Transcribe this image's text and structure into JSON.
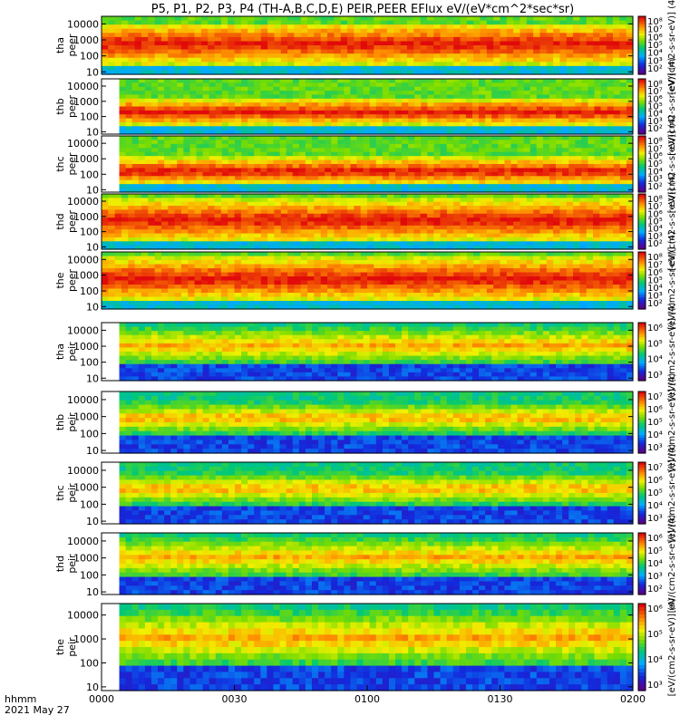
{
  "chart_data": {
    "type": "heatmap",
    "title": "P5, P1, P2, P3, P4 (TH-A,B,C,D,E) PEIR,PEER EFlux eV/(eV*cm^2*sec*sr)",
    "x_ticks": [
      "0000",
      "0030",
      "0100",
      "0130",
      "0200"
    ],
    "x_range_minutes": [
      0,
      120
    ],
    "time_label": "hhmm",
    "date_label": "2021 May 27",
    "y_scale": "log",
    "y_ticks": [
      "10",
      "100",
      "1000",
      "10000"
    ],
    "ylim_eV": [
      7,
      30000
    ],
    "colorbar_label": "[eV/(cm2-s-sr-eV)] (4)",
    "colorbar_scale": "log",
    "panels": [
      {
        "probe": "tha",
        "species": "peer",
        "ylabel": [
          "tha",
          "peer"
        ],
        "data_start_min": 0,
        "band_low_eV": 25,
        "band_high_eV": 12000,
        "cb_ticks": [
          "10^8",
          "10^7",
          "10^6",
          "10^5",
          "10^4",
          "10^3",
          "10^2"
        ]
      },
      {
        "probe": "thb",
        "species": "peer",
        "ylabel": [
          "thb",
          "peer"
        ],
        "data_start_min": 4,
        "band_low_eV": 25,
        "band_high_eV": 1500,
        "cb_ticks": [
          "10^8",
          "10^7",
          "10^6",
          "10^5",
          "10^4",
          "10^3",
          "10^2"
        ]
      },
      {
        "probe": "thc",
        "species": "peer",
        "ylabel": [
          "thc",
          "peer"
        ],
        "data_start_min": 4,
        "band_low_eV": 20,
        "band_high_eV": 1200,
        "cb_ticks": [
          "10^8",
          "10^7",
          "10^6",
          "10^5",
          "10^4",
          "10^3",
          "10^2"
        ]
      },
      {
        "probe": "thd",
        "species": "peer",
        "ylabel": [
          "thd",
          "peer"
        ],
        "data_start_min": 0,
        "band_low_eV": 20,
        "band_high_eV": 15000,
        "cb_ticks": [
          "10^8",
          "10^7",
          "10^6",
          "10^5",
          "10^4",
          "10^3",
          "10^2"
        ]
      },
      {
        "probe": "the",
        "species": "peer",
        "ylabel": [
          "the",
          "peer"
        ],
        "data_start_min": 0,
        "band_low_eV": 20,
        "band_high_eV": 15000,
        "cb_ticks": [
          "10^8",
          "10^7",
          "10^6",
          "10^5",
          "10^4",
          "10^3",
          "10^2"
        ]
      },
      {
        "probe": "tha",
        "species": "peir",
        "ylabel": [
          "tha",
          "peir"
        ],
        "data_start_min": 4,
        "band_low_eV": 60,
        "band_high_eV": 20000,
        "cb_ticks": [
          "10^6",
          "10^5",
          "10^4",
          "10^3"
        ]
      },
      {
        "probe": "thb",
        "species": "peir",
        "ylabel": [
          "thb",
          "peir"
        ],
        "data_start_min": 4,
        "band_low_eV": 80,
        "band_high_eV": 8000,
        "cb_ticks": [
          "10^7",
          "10^6",
          "10^5",
          "10^4",
          "10^3"
        ]
      },
      {
        "probe": "thc",
        "species": "peir",
        "ylabel": [
          "thc",
          "peir"
        ],
        "data_start_min": 4,
        "band_low_eV": 80,
        "band_high_eV": 8000,
        "cb_ticks": [
          "10^7",
          "10^6",
          "10^5",
          "10^4",
          "10^3"
        ]
      },
      {
        "probe": "thd",
        "species": "peir",
        "ylabel": [
          "thd",
          "peir"
        ],
        "data_start_min": 4,
        "band_low_eV": 60,
        "band_high_eV": 20000,
        "cb_ticks": [
          "10^6",
          "10^5",
          "10^4",
          "10^3",
          "10^2"
        ]
      },
      {
        "probe": "the",
        "species": "peir",
        "ylabel": [
          "the",
          "peir"
        ],
        "data_start_min": 4,
        "band_low_eV": 60,
        "band_high_eV": 20000,
        "cb_ticks": [
          "10^6",
          "10^5",
          "10^4",
          "10^3"
        ]
      }
    ],
    "grid": false,
    "legend": "colorbar-right"
  }
}
